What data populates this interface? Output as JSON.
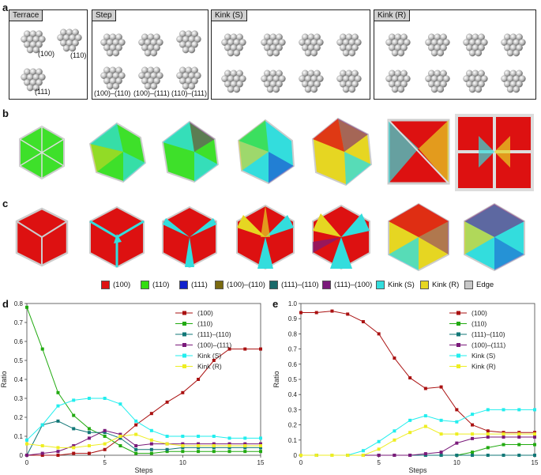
{
  "panel_labels": {
    "a": "a",
    "b": "b",
    "c": "c",
    "d": "d",
    "e": "e"
  },
  "panel_a": {
    "boxes": [
      {
        "title": "Terrace",
        "labels": [
          "(100)",
          "(110)",
          "(111)"
        ]
      },
      {
        "title": "Step",
        "labels": [
          "(100)–(110)",
          "(100)–(111)",
          "(110)–(111)"
        ]
      },
      {
        "title": "Kink (S)",
        "labels": []
      },
      {
        "title": "Kink (R)",
        "labels": []
      }
    ]
  },
  "legend": [
    {
      "label": "(100)",
      "color": "#dd1111"
    },
    {
      "label": "(110)",
      "color": "#33dd11"
    },
    {
      "label": "(111)",
      "color": "#1122cc"
    },
    {
      "label": "(100)–(110)",
      "color": "#7a6a10"
    },
    {
      "label": "(111)–(110)",
      "color": "#1a6a6a"
    },
    {
      "label": "(111)–(100)",
      "color": "#7a1a7a"
    },
    {
      "label": "Kink (S)",
      "color": "#33dddd"
    },
    {
      "label": "Kink (R)",
      "color": "#e6d622"
    },
    {
      "label": "Edge",
      "color": "#c8c8c8"
    }
  ],
  "chart_data": [
    {
      "panel": "d",
      "type": "line",
      "xlabel": "Steps",
      "ylabel": "Ratio",
      "xlim": [
        0,
        15
      ],
      "ylim": [
        0,
        0.8
      ],
      "xticks": [
        0,
        5,
        10,
        15
      ],
      "yticks": [
        0,
        0.1,
        0.2,
        0.3,
        0.4,
        0.5,
        0.6,
        0.7,
        0.8
      ],
      "ytick_labels": [
        "0",
        "0.1",
        "0.2",
        "0.3",
        "0.4",
        "0.5",
        "0.6",
        "0.7",
        "0.8"
      ],
      "x": [
        0,
        1,
        2,
        3,
        4,
        5,
        6,
        7,
        8,
        9,
        10,
        11,
        12,
        13,
        14,
        15
      ],
      "series": [
        {
          "name": "(100)",
          "color": "#aa1111",
          "values": [
            0.0,
            0.0,
            0.0,
            0.01,
            0.01,
            0.03,
            0.09,
            0.16,
            0.22,
            0.28,
            0.33,
            0.4,
            0.5,
            0.56,
            0.56,
            0.56
          ]
        },
        {
          "name": "(110)",
          "color": "#22aa11",
          "values": [
            0.78,
            0.56,
            0.33,
            0.21,
            0.14,
            0.1,
            0.05,
            0.01,
            0.01,
            0.02,
            0.02,
            0.02,
            0.02,
            0.02,
            0.02,
            0.02
          ]
        },
        {
          "name": "(111)–(110)",
          "color": "#117777",
          "values": [
            0.0,
            0.16,
            0.18,
            0.14,
            0.12,
            0.12,
            0.09,
            0.03,
            0.03,
            0.03,
            0.04,
            0.04,
            0.04,
            0.04,
            0.04,
            0.04
          ]
        },
        {
          "name": "(100)–(111)",
          "color": "#7a1a7a",
          "values": [
            0.0,
            0.01,
            0.02,
            0.05,
            0.09,
            0.13,
            0.11,
            0.05,
            0.06,
            0.06,
            0.06,
            0.06,
            0.06,
            0.06,
            0.06,
            0.06
          ]
        },
        {
          "name": "Kink (S)",
          "color": "#22eeee",
          "values": [
            0.08,
            0.16,
            0.26,
            0.29,
            0.3,
            0.3,
            0.27,
            0.18,
            0.13,
            0.1,
            0.1,
            0.1,
            0.1,
            0.09,
            0.09,
            0.09
          ]
        },
        {
          "name": "Kink (R)",
          "color": "#eeee22",
          "values": [
            0.06,
            0.05,
            0.04,
            0.04,
            0.05,
            0.06,
            0.1,
            0.11,
            0.08,
            0.06,
            0.05,
            0.05,
            0.05,
            0.05,
            0.05,
            0.05
          ]
        }
      ]
    },
    {
      "panel": "e",
      "type": "line",
      "xlabel": "Steps",
      "ylabel": "Ratio",
      "xlim": [
        0,
        15
      ],
      "ylim": [
        0,
        1.0
      ],
      "xticks": [
        0,
        5,
        10,
        15
      ],
      "yticks": [
        0,
        0.1,
        0.2,
        0.3,
        0.4,
        0.5,
        0.6,
        0.7,
        0.8,
        0.9,
        1.0
      ],
      "ytick_labels": [
        "0",
        "0.1",
        "0.2",
        "0.3",
        "0.4",
        "0.5",
        "0.6",
        "0.7",
        "0.8",
        "0.9",
        "1.0"
      ],
      "x": [
        0,
        1,
        2,
        3,
        4,
        5,
        6,
        7,
        8,
        9,
        10,
        11,
        12,
        13,
        14,
        15
      ],
      "series": [
        {
          "name": "(100)",
          "color": "#aa1111",
          "values": [
            0.94,
            0.94,
            0.95,
            0.93,
            0.88,
            0.8,
            0.64,
            0.51,
            0.44,
            0.45,
            0.3,
            0.2,
            0.16,
            0.15,
            0.15,
            0.15
          ]
        },
        {
          "name": "(110)",
          "color": "#22aa11",
          "values": [
            0.0,
            0.0,
            0.0,
            0.0,
            0.0,
            0.0,
            0.0,
            0.0,
            0.0,
            0.0,
            0.0,
            0.02,
            0.05,
            0.07,
            0.07,
            0.07
          ]
        },
        {
          "name": "(111)–(110)",
          "color": "#117777",
          "values": [
            0.0,
            0.0,
            0.0,
            0.0,
            0.0,
            0.0,
            0.0,
            0.0,
            0.0,
            0.0,
            0.0,
            0.0,
            0.0,
            0.0,
            0.0,
            0.0
          ]
        },
        {
          "name": "(100)–(111)",
          "color": "#7a1a7a",
          "values": [
            0.0,
            0.0,
            0.0,
            0.0,
            0.0,
            0.0,
            0.0,
            0.0,
            0.01,
            0.02,
            0.08,
            0.11,
            0.12,
            0.12,
            0.12,
            0.12
          ]
        },
        {
          "name": "Kink (S)",
          "color": "#22eeee",
          "values": [
            0.0,
            0.0,
            0.0,
            0.0,
            0.03,
            0.09,
            0.16,
            0.23,
            0.26,
            0.23,
            0.22,
            0.27,
            0.3,
            0.3,
            0.3,
            0.3
          ]
        },
        {
          "name": "Kink (R)",
          "color": "#eeee22",
          "values": [
            0.0,
            0.0,
            0.0,
            0.0,
            0.0,
            0.04,
            0.1,
            0.15,
            0.19,
            0.14,
            0.14,
            0.14,
            0.14,
            0.14,
            0.14,
            0.14
          ]
        }
      ]
    }
  ]
}
